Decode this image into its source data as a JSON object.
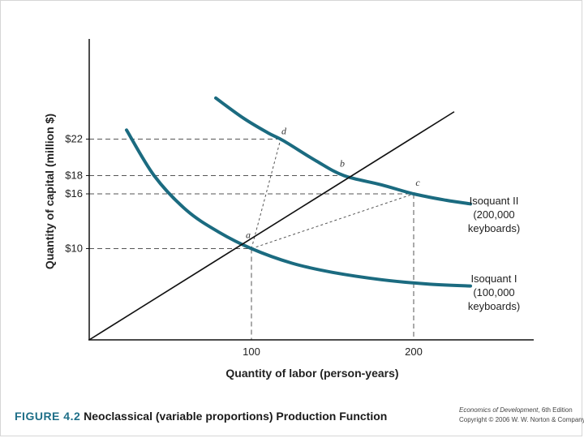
{
  "caption": {
    "figure_number": "FIGURE 4.2",
    "title": "Neoclassical (variable proportions) Production Function"
  },
  "source": {
    "book": "Economics of Development",
    "edition": ", 6th Edition",
    "copyright": "Copyright © 2006 W. W. Norton & Company"
  },
  "colors": {
    "isoquant": "#1b6b80",
    "ray": "#111111",
    "guide": "#555555"
  },
  "chart_data": {
    "type": "line",
    "title": "",
    "xlabel": "Quantity of labor (person-years)",
    "ylabel": "Quantity of capital (million $)",
    "xlim": [
      0,
      270
    ],
    "ylim": [
      0,
      32
    ],
    "x_ticks": [
      {
        "value": 100,
        "label": "100"
      },
      {
        "value": 200,
        "label": "200"
      }
    ],
    "y_ticks": [
      {
        "value": 10,
        "label": "$10"
      },
      {
        "value": 16,
        "label": "$16"
      },
      {
        "value": 18,
        "label": "$18"
      },
      {
        "value": 22,
        "label": "$22"
      }
    ],
    "series": [
      {
        "name": "Isoquant I (100,000 keyboards)",
        "label_lines": [
          "Isoquant I",
          "(100,000",
          "keyboards)"
        ],
        "points": [
          [
            23,
            23
          ],
          [
            40,
            18
          ],
          [
            60,
            14.2
          ],
          [
            80,
            11.8
          ],
          [
            100,
            10
          ],
          [
            125,
            8.4
          ],
          [
            150,
            7.4
          ],
          [
            180,
            6.6
          ],
          [
            210,
            6.1
          ],
          [
            235,
            5.9
          ]
        ]
      },
      {
        "name": "Isoquant II (200,000 keyboards)",
        "label_lines": [
          "Isoquant II",
          "(200,000",
          "keyboards)"
        ],
        "points": [
          [
            78,
            26.5
          ],
          [
            95,
            24.3
          ],
          [
            110,
            22.7
          ],
          [
            120,
            21.8
          ],
          [
            140,
            19.6
          ],
          [
            157,
            18
          ],
          [
            180,
            17
          ],
          [
            200,
            16
          ],
          [
            220,
            15.3
          ],
          [
            235,
            14.9
          ]
        ]
      }
    ],
    "ray": {
      "from": [
        0,
        0
      ],
      "to": [
        225,
        25
      ]
    },
    "points": [
      {
        "label": "a",
        "x": 100,
        "y": 10
      },
      {
        "label": "b",
        "x": 157,
        "y": 18
      },
      {
        "label": "c",
        "x": 200,
        "y": 16
      },
      {
        "label": "d",
        "x": 118,
        "y": 22
      }
    ],
    "connectors": [
      [
        "a",
        "c"
      ],
      [
        "a",
        "d"
      ]
    ],
    "grid": false
  }
}
